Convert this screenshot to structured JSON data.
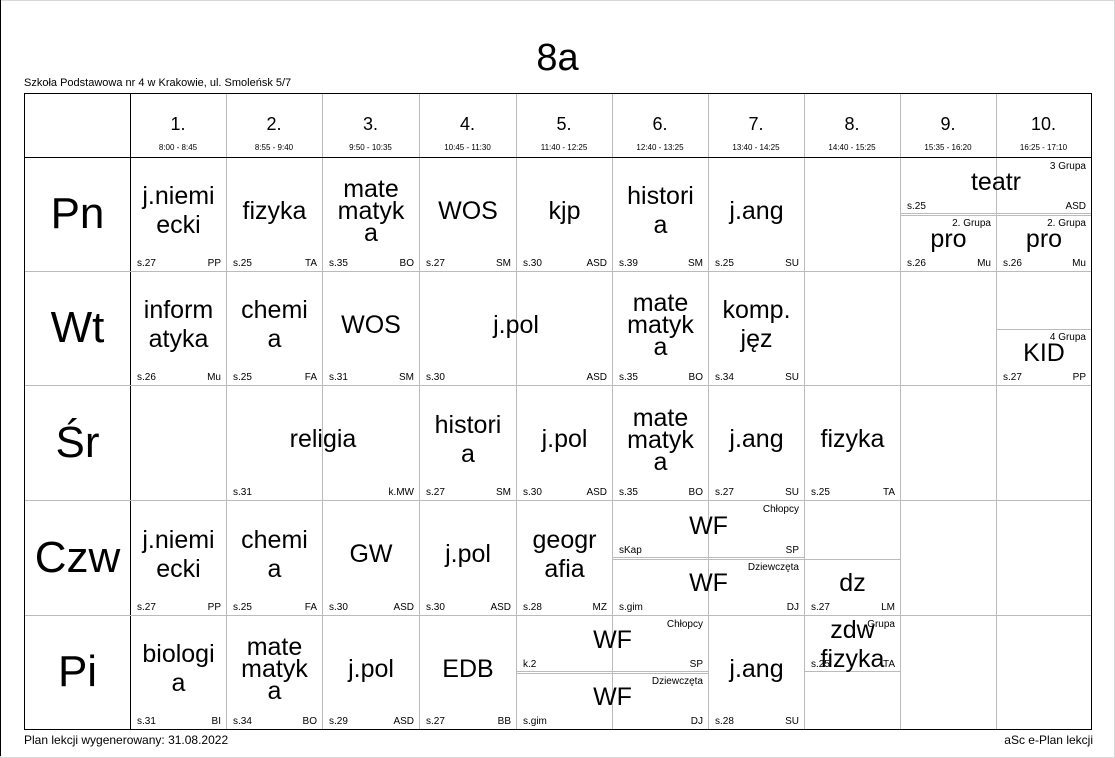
{
  "page": {
    "class_name": "8a",
    "school": "Szkoła Podstawowa nr 4 w Krakowie, ul. Smoleńsk 5/7",
    "generated": "Plan lekcji wygenerowany: 31.08.2022",
    "brand": "aSc e-Plan lekcji"
  },
  "periods": [
    {
      "num": "1.",
      "time": "8:00 - 8:45"
    },
    {
      "num": "2.",
      "time": "8:55 - 9:40"
    },
    {
      "num": "3.",
      "time": "9:50 - 10:35"
    },
    {
      "num": "4.",
      "time": "10:45 - 11:30"
    },
    {
      "num": "5.",
      "time": "11:40 - 12:25"
    },
    {
      "num": "6.",
      "time": "12:40 - 13:25"
    },
    {
      "num": "7.",
      "time": "13:40 - 14:25"
    },
    {
      "num": "8.",
      "time": "14:40 - 15:25"
    },
    {
      "num": "9.",
      "time": "15:35 - 16:20"
    },
    {
      "num": "10.",
      "time": "16:25 - 17:10"
    }
  ],
  "days": [
    "Pn",
    "Wt",
    "Śr",
    "Czw",
    "Pi"
  ],
  "lessons": [
    {
      "id": "pn1",
      "subject": "j.niemi\necki",
      "room": "s.27",
      "teacher": "PP"
    },
    {
      "id": "pn2",
      "subject": "fizyka",
      "room": "s.25",
      "teacher": "TA"
    },
    {
      "id": "pn3",
      "subject": "mate\nmatyk\na",
      "room": "s.35",
      "teacher": "BO"
    },
    {
      "id": "pn4",
      "subject": "WOS",
      "room": "s.27",
      "teacher": "SM"
    },
    {
      "id": "pn5",
      "subject": "kjp",
      "room": "s.30",
      "teacher": "ASD"
    },
    {
      "id": "pn6",
      "subject": "histori\na",
      "room": "s.39",
      "teacher": "SM"
    },
    {
      "id": "pn7",
      "subject": "j.ang",
      "room": "s.25",
      "teacher": "SU"
    },
    {
      "id": "pn9a",
      "subject": "teatr",
      "room": "s.25",
      "teacher": "ASD",
      "group": "3 Grupa"
    },
    {
      "id": "pn9b",
      "subject": "pro",
      "room": "s.26",
      "teacher": "Mu",
      "group": "2. Grupa"
    },
    {
      "id": "pn10b",
      "subject": "pro",
      "room": "s.26",
      "teacher": "Mu",
      "group": "2. Grupa"
    },
    {
      "id": "wt1",
      "subject": "inform\natyka",
      "room": "s.26",
      "teacher": "Mu"
    },
    {
      "id": "wt2",
      "subject": "chemi\na",
      "room": "s.25",
      "teacher": "FA"
    },
    {
      "id": "wt3",
      "subject": "WOS",
      "room": "s.31",
      "teacher": "SM"
    },
    {
      "id": "wt4",
      "subject": "j.pol",
      "room": "s.30",
      "teacher": "ASD"
    },
    {
      "id": "wt6",
      "subject": "mate\nmatyk\na",
      "room": "s.35",
      "teacher": "BO"
    },
    {
      "id": "wt7",
      "subject": "komp.\njęz",
      "room": "s.34",
      "teacher": "SU"
    },
    {
      "id": "wt10",
      "subject": "KID",
      "room": "s.27",
      "teacher": "PP",
      "group": "4 Grupa"
    },
    {
      "id": "sr2",
      "subject": "religia",
      "room": "s.31",
      "teacher": "k.MW"
    },
    {
      "id": "sr4",
      "subject": "histori\na",
      "room": "s.27",
      "teacher": "SM"
    },
    {
      "id": "sr5",
      "subject": "j.pol",
      "room": "s.30",
      "teacher": "ASD"
    },
    {
      "id": "sr6",
      "subject": "mate\nmatyk\na",
      "room": "s.35",
      "teacher": "BO"
    },
    {
      "id": "sr7",
      "subject": "j.ang",
      "room": "s.27",
      "teacher": "SU"
    },
    {
      "id": "sr8",
      "subject": "fizyka",
      "room": "s.25",
      "teacher": "TA"
    },
    {
      "id": "cz1",
      "subject": "j.niemi\necki",
      "room": "s.27",
      "teacher": "PP"
    },
    {
      "id": "cz2",
      "subject": "chemi\na",
      "room": "s.25",
      "teacher": "FA"
    },
    {
      "id": "cz3",
      "subject": "GW",
      "room": "s.30",
      "teacher": "ASD"
    },
    {
      "id": "cz4",
      "subject": "j.pol",
      "room": "s.30",
      "teacher": "ASD"
    },
    {
      "id": "cz5",
      "subject": "geogr\nafia",
      "room": "s.28",
      "teacher": "MZ"
    },
    {
      "id": "cz6a",
      "subject": "WF",
      "room": "sKap",
      "teacher": "SP",
      "group": "Chłopcy"
    },
    {
      "id": "cz6b",
      "subject": "WF",
      "room": "s.gim",
      "teacher": "DJ",
      "group": "Dziewczęta"
    },
    {
      "id": "cz8",
      "subject": "dz",
      "room": "s.27",
      "teacher": "LM"
    },
    {
      "id": "pi1",
      "subject": "biologi\na",
      "room": "s.31",
      "teacher": "BI"
    },
    {
      "id": "pi2",
      "subject": "mate\nmatyk\na",
      "room": "s.34",
      "teacher": "BO"
    },
    {
      "id": "pi3",
      "subject": "j.pol",
      "room": "s.29",
      "teacher": "ASD"
    },
    {
      "id": "pi4",
      "subject": "EDB",
      "room": "s.27",
      "teacher": "BB"
    },
    {
      "id": "pi5a",
      "subject": "WF",
      "room": "k.2",
      "teacher": "SP",
      "group": "Chłopcy"
    },
    {
      "id": "pi5b",
      "subject": "WF",
      "room": "s.gim",
      "teacher": "DJ",
      "group": "Dziewczęta"
    },
    {
      "id": "pi7",
      "subject": "j.ang",
      "room": "s.28",
      "teacher": "SU"
    },
    {
      "id": "pi8",
      "subject": "zdw\nfizyka",
      "room": "s.25",
      "teacher": "TA",
      "group": "Grupa"
    }
  ]
}
